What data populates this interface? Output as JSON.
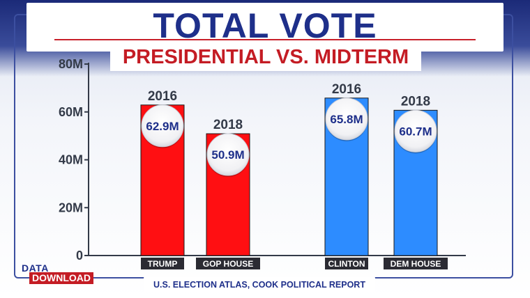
{
  "header": {
    "title": "TOTAL VOTE",
    "subtitle": "PRESIDENTIAL VS. MIDTERM"
  },
  "brand": {
    "line1": "DATA",
    "line2": "DOWNLOAD"
  },
  "source": "U.S. ELECTION ATLAS, COOK POLITICAL REPORT",
  "colors": {
    "republican": "#ff0f12",
    "democrat": "#2d8cff",
    "title": "#1e2f8a",
    "accent": "#c41c24"
  },
  "chart_data": {
    "type": "bar",
    "title": "TOTAL VOTE",
    "subtitle": "PRESIDENTIAL VS. MIDTERM",
    "ylim": [
      0,
      80
    ],
    "yticks": [
      0,
      20,
      40,
      60,
      80
    ],
    "ytick_labels": [
      "0",
      "20M",
      "40M",
      "60M",
      "80M"
    ],
    "grid": false,
    "bars": [
      {
        "category": "TRUMP",
        "year": "2016",
        "value": 62.9,
        "label": "62.9M",
        "party": "republican"
      },
      {
        "category": "GOP HOUSE",
        "year": "2018",
        "value": 50.9,
        "label": "50.9M",
        "party": "republican"
      },
      {
        "category": "CLINTON",
        "year": "2016",
        "value": 65.8,
        "label": "65.8M",
        "party": "democrat"
      },
      {
        "category": "DEM HOUSE",
        "year": "2018",
        "value": 60.7,
        "label": "60.7M",
        "party": "democrat"
      }
    ]
  }
}
